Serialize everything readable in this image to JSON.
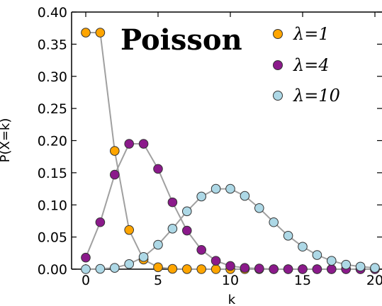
{
  "chart_data": {
    "type": "line",
    "title": "Poisson",
    "xlabel": "k",
    "ylabel": "P(X=k)",
    "xlim": [
      -1,
      20
    ],
    "ylim": [
      0.0,
      0.4
    ],
    "x_ticks": [
      "0",
      "5",
      "10",
      "15",
      "20"
    ],
    "y_ticks": [
      "0.00",
      "0.05",
      "0.10",
      "0.15",
      "0.20",
      "0.25",
      "0.30",
      "0.35",
      "0.40"
    ],
    "legend_position": "top-right",
    "line_color": "#a0a0a0",
    "x": [
      0,
      1,
      2,
      3,
      4,
      5,
      6,
      7,
      8,
      9,
      10,
      11,
      12,
      13,
      14,
      15,
      16,
      17,
      18,
      19,
      20
    ],
    "series": [
      {
        "name": "λ=1",
        "color": "#ffa500",
        "values": [
          0.368,
          0.368,
          0.184,
          0.061,
          0.015,
          0.003,
          0.0005,
          0.0001,
          0.0,
          0.0,
          0.0,
          0.0,
          0.0,
          0.0,
          0.0,
          0.0,
          0.0,
          0.0,
          0.0,
          0.0,
          0.0
        ]
      },
      {
        "name": "λ=4",
        "color": "#8b1a8b",
        "values": [
          0.018,
          0.073,
          0.147,
          0.195,
          0.195,
          0.156,
          0.104,
          0.06,
          0.03,
          0.013,
          0.005,
          0.002,
          0.001,
          0.0,
          0.0,
          0.0,
          0.0,
          0.0,
          0.0,
          0.0,
          0.0
        ]
      },
      {
        "name": "λ=10",
        "color": "#add8e6",
        "values": [
          0.0,
          0.0005,
          0.002,
          0.008,
          0.019,
          0.038,
          0.063,
          0.09,
          0.113,
          0.125,
          0.125,
          0.114,
          0.095,
          0.073,
          0.052,
          0.035,
          0.022,
          0.013,
          0.007,
          0.004,
          0.002
        ]
      }
    ]
  }
}
